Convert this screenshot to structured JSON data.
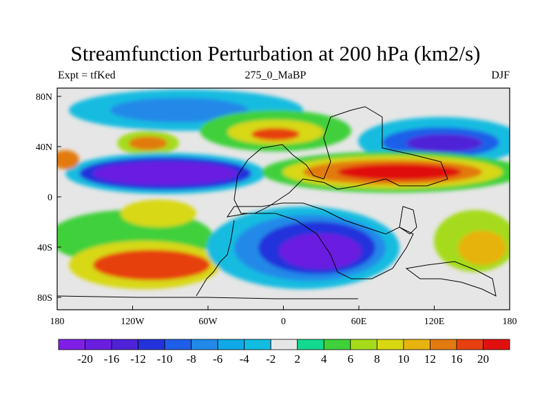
{
  "title": "Streamfunction Perturbation at 200 hPa (km2/s)",
  "subtitle_left": "Expt = tfKed",
  "subtitle_center": "275_0_MaBP",
  "subtitle_right": "DJF",
  "lat_labels": [
    "80N",
    "40N",
    "0",
    "40S",
    "80S"
  ],
  "lon_labels": [
    "180",
    "120W",
    "60W",
    "0",
    "60E",
    "120E",
    "180"
  ],
  "colorbar": {
    "colors": [
      "#7f1fe6",
      "#6a1ee0",
      "#4f22d8",
      "#2432dc",
      "#1f5ee8",
      "#2189e8",
      "#10a8e6",
      "#12bce0",
      "#e6e6e6",
      "#13d890",
      "#3fd03a",
      "#a5db1b",
      "#d8d812",
      "#e6b30f",
      "#e27a10",
      "#e64010",
      "#e01010"
    ],
    "labels": [
      "-20",
      "-16",
      "-12",
      "-10",
      "-8",
      "-6",
      "-4",
      "-2",
      "2",
      "4",
      "6",
      "8",
      "10",
      "12",
      "16",
      "20"
    ]
  }
}
